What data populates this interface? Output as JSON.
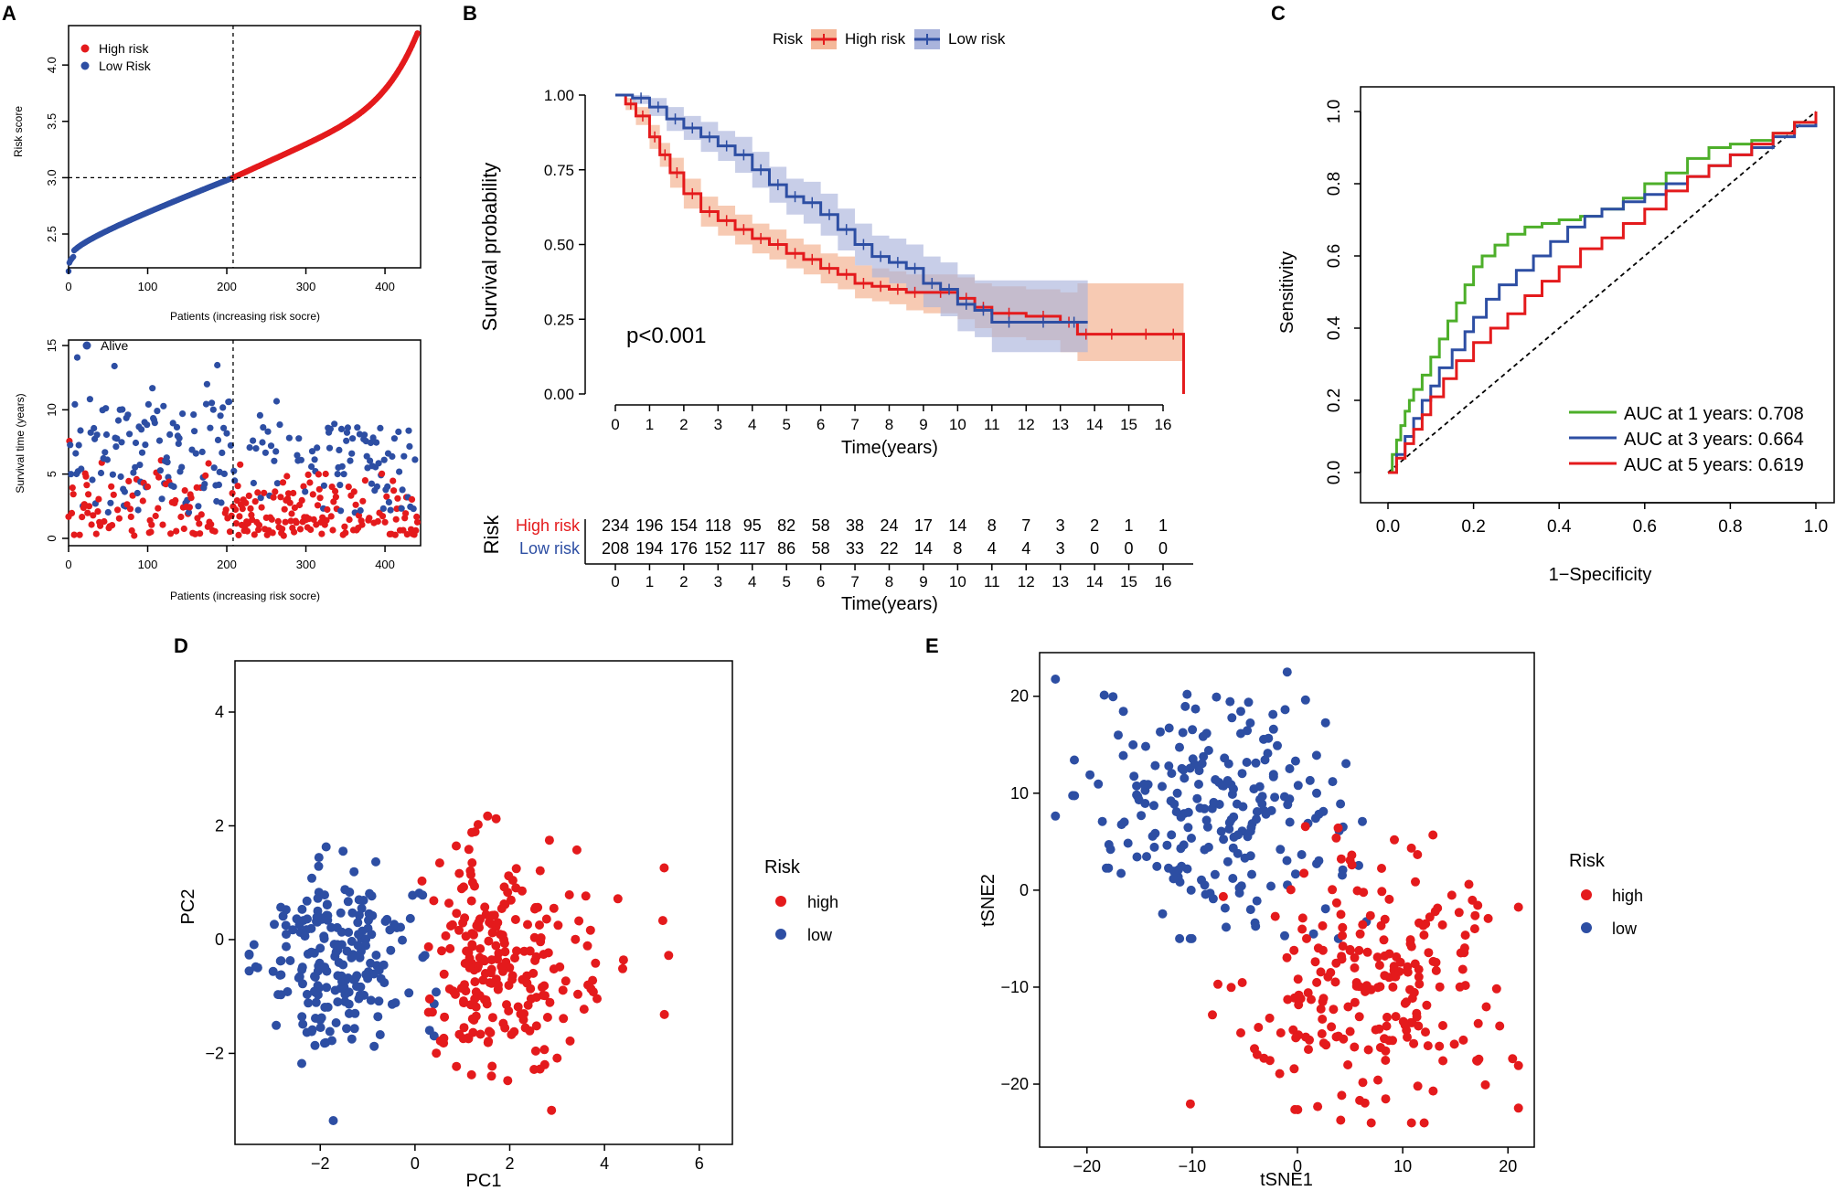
{
  "colors": {
    "high": "#e41a1c",
    "low": "#2d4ea3",
    "green": "#4daf2a",
    "red_fill": "#f4b89a",
    "blue_fill": "#aab4dc"
  },
  "chart_data": [
    {
      "panel": "A",
      "type": "scatter",
      "subplot": "risk-score",
      "xlabel": "Patients (increasing risk socre)",
      "ylabel": "Risk score",
      "xlim": [
        0,
        445
      ],
      "ylim": [
        2.2,
        4.35
      ],
      "xticks": [
        "0",
        "100",
        "200",
        "300",
        "400"
      ],
      "yticks": [
        "2.5",
        "3.0",
        "3.5",
        "4.0"
      ],
      "n_patients": 442,
      "cutoff_index": 208,
      "cutoff_score": 3.0,
      "legend": [
        "High risk",
        "Low Risk"
      ]
    },
    {
      "panel": "A",
      "type": "scatter",
      "subplot": "survival-status",
      "xlabel": "Patients (increasing risk socre)",
      "ylabel": "Survival time (years)",
      "xlim": [
        0,
        445
      ],
      "ylim": [
        0,
        15
      ],
      "xticks": [
        "0",
        "100",
        "200",
        "300",
        "400"
      ],
      "yticks": [
        "0",
        "5",
        "10",
        "15"
      ],
      "legend": [
        "Alive"
      ]
    },
    {
      "panel": "B",
      "type": "line",
      "subplot": "kaplan-meier",
      "legend_title": "Risk",
      "legend": [
        "High risk",
        "Low risk"
      ],
      "xlabel": "Time(years)",
      "ylabel": "Survival probability",
      "xticks": [
        "0",
        "1",
        "2",
        "3",
        "4",
        "5",
        "6",
        "7",
        "8",
        "9",
        "10",
        "11",
        "12",
        "13",
        "14",
        "15",
        "16"
      ],
      "yticks": [
        "0.00",
        "0.25",
        "0.50",
        "0.75",
        "1.00"
      ],
      "pvalue": "p<0.001",
      "series": [
        {
          "name": "High risk",
          "x": [
            0,
            0.3,
            0.6,
            1,
            1.3,
            1.6,
            2,
            2.5,
            3,
            3.5,
            4,
            4.5,
            5,
            5.5,
            6,
            6.5,
            7,
            7.5,
            8,
            8.5,
            9,
            10,
            10.5,
            11,
            12,
            13,
            13.5,
            14,
            15,
            16,
            16.6
          ],
          "y": [
            1,
            0.97,
            0.93,
            0.86,
            0.8,
            0.74,
            0.67,
            0.61,
            0.58,
            0.55,
            0.52,
            0.5,
            0.47,
            0.45,
            0.42,
            0.4,
            0.37,
            0.36,
            0.35,
            0.34,
            0.34,
            0.32,
            0.29,
            0.27,
            0.26,
            0.24,
            0.2,
            0.2,
            0.2,
            0.2,
            0.2
          ],
          "lower": [
            1,
            0.95,
            0.9,
            0.82,
            0.76,
            0.69,
            0.62,
            0.56,
            0.53,
            0.5,
            0.47,
            0.45,
            0.42,
            0.4,
            0.37,
            0.35,
            0.32,
            0.31,
            0.3,
            0.28,
            0.27,
            0.25,
            0.22,
            0.19,
            0.18,
            0.14,
            0.11,
            0.11,
            0.11,
            0.11,
            0.11
          ],
          "upper": [
            1,
            0.99,
            0.96,
            0.9,
            0.84,
            0.79,
            0.72,
            0.66,
            0.63,
            0.6,
            0.57,
            0.55,
            0.52,
            0.5,
            0.47,
            0.46,
            0.43,
            0.42,
            0.41,
            0.4,
            0.4,
            0.39,
            0.37,
            0.36,
            0.35,
            0.34,
            0.37,
            0.37,
            0.37,
            0.37,
            0.37
          ]
        },
        {
          "name": "Low risk",
          "x": [
            0,
            0.5,
            1,
            1.5,
            2,
            2.5,
            3,
            3.5,
            4,
            4.5,
            5,
            5.5,
            6,
            6.5,
            7,
            7.5,
            8,
            8.5,
            9,
            9.5,
            10,
            10.5,
            11,
            12,
            13,
            13.8
          ],
          "y": [
            1,
            0.99,
            0.96,
            0.92,
            0.89,
            0.86,
            0.83,
            0.8,
            0.75,
            0.7,
            0.66,
            0.64,
            0.6,
            0.55,
            0.5,
            0.46,
            0.44,
            0.42,
            0.37,
            0.35,
            0.3,
            0.28,
            0.24,
            0.24,
            0.24,
            0.24
          ],
          "lower": [
            1,
            0.97,
            0.93,
            0.88,
            0.85,
            0.81,
            0.78,
            0.74,
            0.69,
            0.64,
            0.6,
            0.57,
            0.53,
            0.48,
            0.43,
            0.39,
            0.37,
            0.34,
            0.29,
            0.26,
            0.21,
            0.19,
            0.14,
            0.14,
            0.14,
            0.14
          ],
          "upper": [
            1,
            1.0,
            0.99,
            0.96,
            0.93,
            0.91,
            0.88,
            0.86,
            0.81,
            0.76,
            0.72,
            0.71,
            0.67,
            0.62,
            0.57,
            0.53,
            0.52,
            0.5,
            0.46,
            0.44,
            0.4,
            0.38,
            0.38,
            0.38,
            0.38,
            0.38
          ]
        }
      ]
    },
    {
      "panel": "B",
      "type": "table",
      "subplot": "risk-table",
      "ylabel": "Risk",
      "xlabel": "Time(years)",
      "rows": [
        {
          "name": "High risk",
          "values": [
            "234",
            "196",
            "154",
            "118",
            "95",
            "82",
            "58",
            "38",
            "24",
            "17",
            "14",
            "8",
            "7",
            "3",
            "2",
            "1",
            "1"
          ]
        },
        {
          "name": "Low risk",
          "values": [
            "208",
            "194",
            "176",
            "152",
            "117",
            "86",
            "58",
            "33",
            "22",
            "14",
            "8",
            "4",
            "4",
            "3",
            "0",
            "0",
            "0"
          ]
        }
      ]
    },
    {
      "panel": "C",
      "type": "line",
      "subplot": "roc",
      "xlabel": "1−Specificity",
      "ylabel": "Sensitivity",
      "xticks": [
        "0.0",
        "0.2",
        "0.4",
        "0.6",
        "0.8",
        "1.0"
      ],
      "yticks": [
        "0.0",
        "0.2",
        "0.4",
        "0.6",
        "0.8",
        "1.0"
      ],
      "series": [
        {
          "name": "AUC at 1 years: 0.708",
          "x": [
            0,
            0.01,
            0.02,
            0.03,
            0.04,
            0.05,
            0.06,
            0.08,
            0.1,
            0.12,
            0.14,
            0.16,
            0.18,
            0.2,
            0.22,
            0.25,
            0.28,
            0.32,
            0.36,
            0.4,
            0.45,
            0.5,
            0.55,
            0.6,
            0.65,
            0.7,
            0.75,
            0.8,
            0.85,
            0.9,
            0.95,
            1
          ],
          "y": [
            0,
            0.05,
            0.09,
            0.13,
            0.17,
            0.2,
            0.23,
            0.27,
            0.32,
            0.37,
            0.42,
            0.47,
            0.52,
            0.57,
            0.6,
            0.63,
            0.66,
            0.68,
            0.69,
            0.7,
            0.71,
            0.73,
            0.76,
            0.8,
            0.83,
            0.87,
            0.9,
            0.91,
            0.92,
            0.94,
            0.97,
            1
          ]
        },
        {
          "name": "AUC at 3 years: 0.664",
          "x": [
            0,
            0.02,
            0.04,
            0.06,
            0.08,
            0.1,
            0.12,
            0.15,
            0.18,
            0.2,
            0.23,
            0.26,
            0.3,
            0.34,
            0.38,
            0.42,
            0.46,
            0.5,
            0.55,
            0.6,
            0.65,
            0.7,
            0.75,
            0.8,
            0.85,
            0.9,
            0.95,
            1
          ],
          "y": [
            0,
            0.05,
            0.1,
            0.15,
            0.2,
            0.24,
            0.29,
            0.34,
            0.39,
            0.43,
            0.48,
            0.52,
            0.56,
            0.6,
            0.64,
            0.68,
            0.71,
            0.73,
            0.75,
            0.77,
            0.8,
            0.82,
            0.85,
            0.88,
            0.9,
            0.93,
            0.96,
            1
          ]
        },
        {
          "name": "AUC at 5 years: 0.619",
          "x": [
            0,
            0.02,
            0.04,
            0.06,
            0.08,
            0.1,
            0.13,
            0.16,
            0.2,
            0.24,
            0.28,
            0.32,
            0.36,
            0.4,
            0.45,
            0.5,
            0.55,
            0.6,
            0.65,
            0.7,
            0.75,
            0.8,
            0.85,
            0.9,
            0.95,
            1
          ],
          "y": [
            0,
            0.04,
            0.08,
            0.12,
            0.16,
            0.21,
            0.26,
            0.31,
            0.36,
            0.4,
            0.44,
            0.49,
            0.53,
            0.57,
            0.62,
            0.65,
            0.69,
            0.73,
            0.78,
            0.82,
            0.85,
            0.88,
            0.91,
            0.94,
            0.97,
            1
          ]
        }
      ]
    },
    {
      "panel": "D",
      "type": "scatter",
      "subplot": "pca",
      "xlabel": "PC1",
      "ylabel": "PC2",
      "xlim": [
        -3.8,
        6.7
      ],
      "ylim": [
        -3.6,
        4.9
      ],
      "xticks": [
        "−2",
        "0",
        "2",
        "4",
        "6"
      ],
      "yticks": [
        "−2",
        "0",
        "2",
        "4"
      ],
      "legend_title": "Risk",
      "legend": [
        "high",
        "low"
      ]
    },
    {
      "panel": "E",
      "type": "scatter",
      "subplot": "tsne",
      "xlabel": "tSNE1",
      "ylabel": "tSNE2",
      "xlim": [
        -24.5,
        22.5
      ],
      "ylim": [
        -26.5,
        24.5
      ],
      "xticks": [
        "−20",
        "−10",
        "0",
        "10",
        "20"
      ],
      "yticks": [
        "−20",
        "−10",
        "0",
        "10",
        "20"
      ],
      "legend_title": "Risk",
      "legend": [
        "high",
        "low"
      ]
    }
  ],
  "panels": {
    "a": "A",
    "b": "B",
    "c": "C",
    "d": "D",
    "e": "E"
  }
}
